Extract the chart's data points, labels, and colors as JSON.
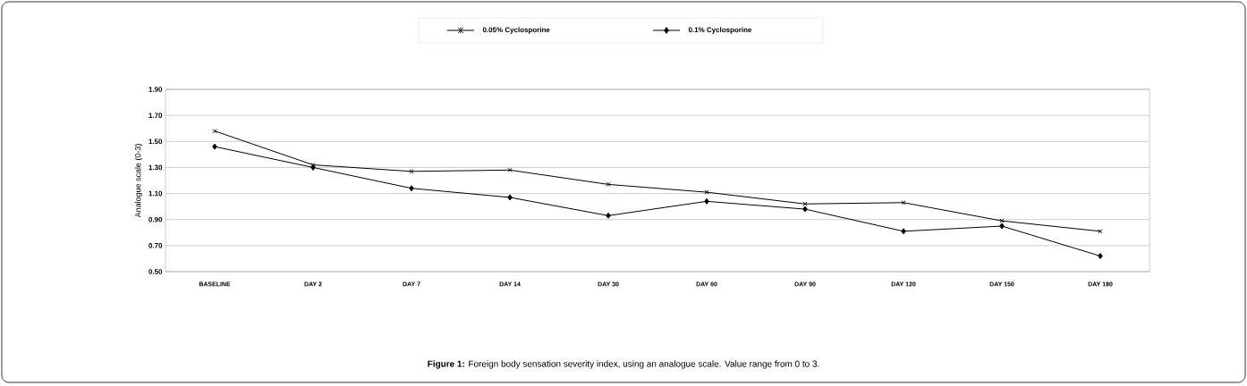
{
  "chart_data": {
    "type": "line",
    "ylabel": "Analogue scale (0-3)",
    "categories": [
      "BASELINE",
      "DAY 2",
      "DAY 7",
      "DAY 14",
      "DAY 30",
      "DAY 60",
      "DAY 90",
      "DAY 120",
      "DAY 150",
      "DAY 180"
    ],
    "series": [
      {
        "name": "0.05% Cyclosporine",
        "color": "#000000",
        "marker": "cross",
        "values": [
          1.58,
          1.32,
          1.27,
          1.28,
          1.17,
          1.11,
          1.02,
          1.03,
          0.89,
          0.81
        ]
      },
      {
        "name": "0.1% Cyclosporine",
        "color": "#000000",
        "marker": "diamond",
        "values": [
          1.46,
          1.3,
          1.14,
          1.07,
          0.93,
          1.04,
          0.98,
          0.81,
          0.85,
          0.62
        ]
      }
    ],
    "ylim": [
      0.5,
      1.9
    ],
    "yticks": [
      {
        "value": 0.5,
        "label": "0.50"
      },
      {
        "value": 0.7,
        "label": "0.70"
      },
      {
        "value": 0.9,
        "label": "0.90"
      },
      {
        "value": 1.1,
        "label": "1.10"
      },
      {
        "value": 1.3,
        "label": "1.30"
      },
      {
        "value": 1.5,
        "label": "1.50"
      },
      {
        "value": 1.7,
        "label": "1.70"
      },
      {
        "value": 1.9,
        "label": "1.90"
      }
    ],
    "grid": "y",
    "legend": "top",
    "line_style": "solid",
    "annotations": [
      "**Figure 1:** Foreign body sensation severity index, using an analogue scale. Value range from 0 to 3."
    ]
  }
}
